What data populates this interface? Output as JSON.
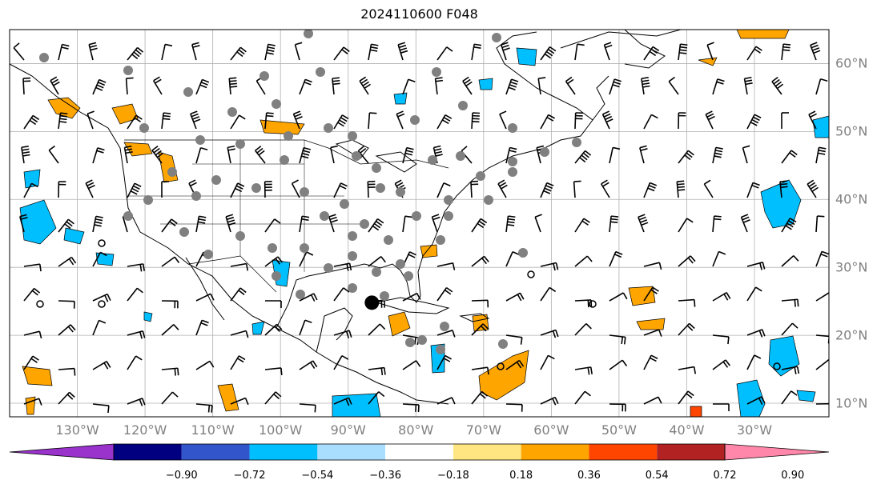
{
  "title": "2024110600 F048",
  "map": {
    "lon_range": [
      -140,
      -19
    ],
    "lat_range": [
      8,
      65
    ],
    "lon_ticks": [
      {
        "lon": -130,
        "label": "130°W"
      },
      {
        "lon": -120,
        "label": "120°W"
      },
      {
        "lon": -110,
        "label": "110°W"
      },
      {
        "lon": -100,
        "label": "100°W"
      },
      {
        "lon": -90,
        "label": "90°W"
      },
      {
        "lon": -80,
        "label": "80°W"
      },
      {
        "lon": -70,
        "label": "70°W"
      },
      {
        "lon": -60,
        "label": "60°W"
      },
      {
        "lon": -50,
        "label": "50°W"
      },
      {
        "lon": -40,
        "label": "40°W"
      },
      {
        "lon": -30,
        "label": "30°W"
      }
    ],
    "lat_ticks": [
      {
        "lat": 60,
        "label": "60°N"
      },
      {
        "lat": 50,
        "label": "50°N"
      },
      {
        "lat": 40,
        "label": "40°N"
      },
      {
        "lat": 30,
        "label": "30°N"
      },
      {
        "lat": 20,
        "label": "20°N"
      },
      {
        "lat": 10,
        "label": "10°N"
      }
    ],
    "gridlines": true,
    "storm_marker": {
      "lon": -86.5,
      "lat": 24.8
    },
    "colors": {
      "orange": "#ffa500",
      "light_blue": "#00bfff",
      "gray_dot": "#808080",
      "red": "#ff4500"
    }
  },
  "colorbar": {
    "extend": "both",
    "colors": [
      "#9933cc",
      "#000080",
      "#3355cc",
      "#00bfff",
      "#aadeff",
      "#ffffff",
      "#ffe680",
      "#ffa500",
      "#ff4500",
      "#b22222",
      "#ff88aa"
    ],
    "tick_labels": [
      "−0.90",
      "−0.72",
      "−0.54",
      "−0.36",
      "−0.18",
      "0.18",
      "0.36",
      "0.54",
      "0.72",
      "0.90"
    ]
  }
}
